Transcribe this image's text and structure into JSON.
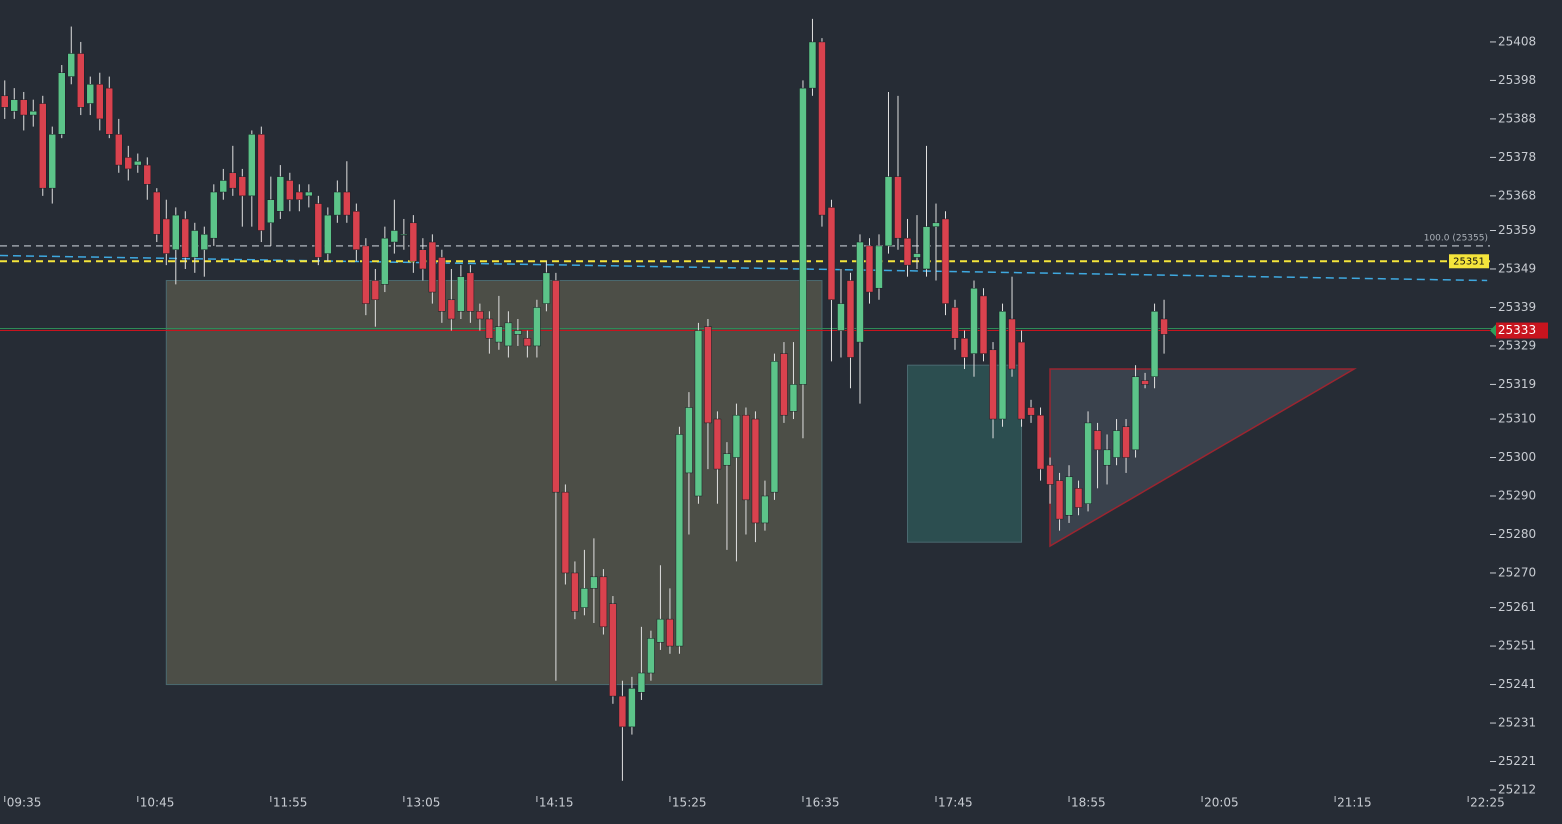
{
  "chart_data": {
    "type": "candlestick",
    "up_color": "#5cc489",
    "down_color": "#d9424e",
    "open": [
      25394,
      25390,
      25393,
      25389,
      25392,
      25370,
      25384,
      25399,
      25405,
      25392,
      25397,
      25396,
      25384,
      25378,
      25376,
      25376,
      25369,
      25362,
      25354,
      25362,
      25352,
      25354,
      25357,
      25369,
      25374,
      25373,
      25368,
      25384,
      25361,
      25364,
      25372,
      25369,
      25368,
      25366,
      25353,
      25363,
      25369,
      25364,
      25355,
      25346,
      25345,
      25356,
      25358,
      25361,
      25354,
      25356,
      25352,
      25341,
      25338,
      25348,
      25338,
      25336,
      25330,
      25329,
      25332,
      25331,
      25329,
      25340,
      25346,
      25291,
      25270,
      25261,
      25266,
      25269,
      25262,
      25238,
      25230,
      25239,
      25244,
      25252,
      25258,
      25251,
      25296,
      25290,
      25334,
      25310,
      25298,
      25300,
      25311,
      25310,
      25283,
      25291,
      25327,
      25312,
      25319,
      25396,
      25408,
      25365,
      25333,
      25346,
      25330,
      25355,
      25344,
      25355,
      25373,
      25357,
      25352,
      25349,
      25360,
      25362,
      25339,
      25331,
      25327,
      25342,
      25328,
      25310,
      25336,
      25330,
      25313,
      25311,
      25298,
      25294,
      25285,
      25292,
      25288,
      25307,
      25298,
      25300,
      25308,
      25302,
      25320,
      25321,
      25336
    ],
    "high": [
      25398,
      25396,
      25395,
      25393,
      25394,
      25386,
      25402,
      25412,
      25408,
      25399,
      25400,
      25399,
      25388,
      25381,
      25379,
      25378,
      25370,
      25367,
      25365,
      25364,
      25361,
      25360,
      25371,
      25375,
      25381,
      25375,
      25385,
      25386,
      25373,
      25376,
      25374,
      25371,
      25371,
      25368,
      25365,
      25372,
      25377,
      25366,
      25357,
      25349,
      25360,
      25367,
      25362,
      25363,
      25357,
      25358,
      25354,
      25349,
      25350,
      25350,
      25340,
      25338,
      25342,
      25338,
      25336,
      25333,
      25341,
      25351,
      25348,
      25293,
      25273,
      25276,
      25279,
      25271,
      25264,
      25242,
      25243,
      25256,
      25255,
      25272,
      25266,
      25308,
      25317,
      25335,
      25336,
      25312,
      25304,
      25314,
      25313,
      25312,
      25294,
      25327,
      25330,
      25330,
      25398,
      25414,
      25409,
      25367,
      25349,
      25348,
      25358,
      25357,
      25358,
      25395,
      25394,
      25362,
      25363,
      25381,
      25366,
      25364,
      25341,
      25333,
      25346,
      25344,
      25330,
      25340,
      25347,
      25333,
      25315,
      25313,
      25300,
      25296,
      25298,
      25294,
      25312,
      25309,
      25306,
      25310,
      25310,
      25324,
      25322,
      25340,
      25341
    ],
    "low": [
      25388,
      25388,
      25385,
      25386,
      25368,
      25366,
      25383,
      25397,
      25389,
      25389,
      25385,
      25383,
      25374,
      25372,
      25374,
      25367,
      25356,
      25350,
      25345,
      25349,
      25348,
      25347,
      25355,
      25367,
      25368,
      25360,
      25360,
      25356,
      25355,
      25362,
      25364,
      25364,
      25365,
      25350,
      25351,
      25361,
      25361,
      25351,
      25337,
      25334,
      25343,
      25353,
      25354,
      25348,
      25346,
      25340,
      25335,
      25333,
      25336,
      25335,
      25333,
      25327,
      25328,
      25326,
      25329,
      25326,
      25326,
      25338,
      25242,
      25267,
      25258,
      25259,
      25257,
      25254,
      25236,
      25216,
      25228,
      25237,
      25242,
      25250,
      25249,
      25249,
      25280,
      25288,
      25297,
      25288,
      25276,
      25273,
      25280,
      25278,
      25281,
      25289,
      25309,
      25310,
      25305,
      25394,
      25360,
      25325,
      25326,
      25318,
      25314,
      25340,
      25341,
      25353,
      25354,
      25347,
      25349,
      25347,
      25346,
      25337,
      25328,
      25323,
      25321,
      25325,
      25305,
      25308,
      25321,
      25308,
      25309,
      25294,
      25288,
      25281,
      25283,
      25285,
      25286,
      25292,
      25293,
      25298,
      25296,
      25300,
      25318,
      25318,
      25327
    ],
    "close": [
      25391,
      25393,
      25389,
      25390,
      25370,
      25384,
      25400,
      25405,
      25391,
      25397,
      25388,
      25384,
      25376,
      25375,
      25377,
      25371,
      25358,
      25353,
      25363,
      25352,
      25359,
      25358,
      25369,
      25372,
      25370,
      25368,
      25384,
      25359,
      25367,
      25373,
      25367,
      25367,
      25369,
      25352,
      25363,
      25369,
      25363,
      25354,
      25340,
      25341,
      25357,
      25359,
      25358,
      25351,
      25349,
      25343,
      25338,
      25336,
      25347,
      25338,
      25336,
      25331,
      25334,
      25335,
      25333,
      25329,
      25339,
      25348,
      25291,
      25270,
      25260,
      25266,
      25269,
      25256,
      25238,
      25230,
      25240,
      25244,
      25253,
      25258,
      25251,
      25306,
      25313,
      25333,
      25309,
      25297,
      25301,
      25311,
      25289,
      25283,
      25290,
      25325,
      25311,
      25319,
      25396,
      25408,
      25363,
      25341,
      25340,
      25326,
      25356,
      25343,
      25355,
      25373,
      25357,
      25350,
      25353,
      25360,
      25361,
      25340,
      25331,
      25326,
      25344,
      25327,
      25310,
      25338,
      25323,
      25310,
      25311,
      25297,
      25293,
      25284,
      25295,
      25287,
      25309,
      25302,
      25302,
      25307,
      25300,
      25321,
      25319,
      25338,
      25332
    ],
    "xlim": [
      -0.5,
      156.3
    ],
    "xticks": [
      {
        "value": 0,
        "label": "09:35"
      },
      {
        "value": 14,
        "label": "10:45"
      },
      {
        "value": 28,
        "label": "11:55"
      },
      {
        "value": 42,
        "label": "13:05"
      },
      {
        "value": 56,
        "label": "14:15"
      },
      {
        "value": 70,
        "label": "15:25"
      },
      {
        "value": 84,
        "label": "16:35"
      },
      {
        "value": 98,
        "label": "17:45"
      },
      {
        "value": 112,
        "label": "18:55"
      },
      {
        "value": 126,
        "label": "20:05"
      },
      {
        "value": 140,
        "label": "21:15"
      },
      {
        "value": 154,
        "label": "22:25"
      }
    ],
    "ylim": [
      25211,
      25418.9
    ],
    "yticks": [
      25408,
      25398,
      25388,
      25378,
      25368,
      25359,
      25349,
      25339,
      25329,
      25319,
      25310,
      25300,
      25290,
      25280,
      25270,
      25261,
      25251,
      25241,
      25231,
      25221,
      25212
    ],
    "levels": [
      {
        "label": "100.0 (25355)",
        "value": 25355,
        "color": "#9aa0a8"
      },
      {
        "label": "25351",
        "value": 25351,
        "color": "#f5e53b"
      },
      {
        "label": "25333",
        "value": 25333,
        "color": "#c8141e"
      }
    ],
    "trend_line": {
      "x": [
        -0.5,
        156
      ],
      "values": [
        25352.5,
        25346
      ],
      "color": "#3fa9e0"
    },
    "boxes": [
      {
        "x": [
          17,
          86
        ],
        "values": [
          25346,
          25241
        ],
        "color": "#5a5a4e"
      },
      {
        "x": [
          95,
          107
        ],
        "values": [
          25324,
          25278
        ],
        "color": "#2f5a5a"
      }
    ],
    "triangle": {
      "x": [
        110,
        110,
        142
      ],
      "values": [
        25323,
        25277,
        25323
      ],
      "color": "#9b2530"
    }
  }
}
